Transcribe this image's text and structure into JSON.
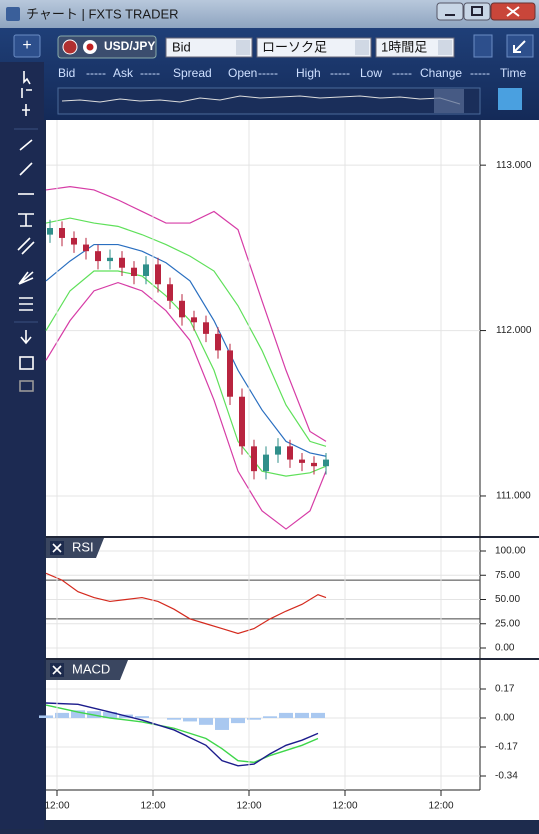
{
  "window": {
    "title": "チャート | FXTS TRADER"
  },
  "toolbar": {
    "symbol": "USD/JPY",
    "price_side": "Bid",
    "chart_type": "ローソク足",
    "timeframe": "1時間足"
  },
  "quote_bar": [
    "Bid",
    "-----",
    "Ask",
    "-----",
    "Spread",
    "Open",
    "-----",
    "High",
    "-----",
    "Low",
    "-----",
    "Change",
    "-----",
    "Time"
  ],
  "chart_data": [
    {
      "type": "candlestick",
      "x": [
        1,
        4,
        7,
        10,
        13,
        16,
        19,
        22,
        25,
        28,
        31,
        34,
        37,
        40,
        43,
        46,
        49,
        52,
        55,
        58,
        61,
        64,
        67,
        70
      ],
      "open": [
        112.58,
        112.62,
        112.56,
        112.52,
        112.48,
        112.42,
        112.44,
        112.38,
        112.33,
        112.4,
        112.28,
        112.18,
        112.08,
        112.05,
        111.98,
        111.88,
        111.6,
        111.3,
        111.15,
        111.25,
        111.3,
        111.22,
        111.2,
        111.18
      ],
      "high": [
        112.67,
        112.66,
        112.6,
        112.56,
        112.52,
        112.49,
        112.48,
        112.42,
        112.45,
        112.44,
        112.32,
        112.22,
        112.12,
        112.09,
        112.02,
        111.92,
        111.65,
        111.34,
        111.3,
        111.35,
        111.34,
        111.26,
        111.24,
        111.26
      ],
      "low": [
        112.53,
        112.51,
        112.47,
        112.43,
        112.37,
        112.37,
        112.33,
        112.28,
        112.28,
        112.23,
        112.13,
        112.03,
        112.0,
        111.93,
        111.83,
        111.55,
        111.25,
        111.1,
        111.1,
        111.2,
        111.17,
        111.15,
        111.13,
        111.13
      ],
      "close": [
        112.62,
        112.56,
        112.52,
        112.48,
        112.42,
        112.44,
        112.38,
        112.33,
        112.4,
        112.28,
        112.18,
        112.08,
        112.05,
        111.98,
        111.88,
        111.6,
        111.3,
        111.15,
        111.25,
        111.3,
        111.22,
        111.2,
        111.18,
        111.22
      ],
      "up_color": "#2f8f8a",
      "down_color": "#b8243f",
      "line_x": [
        0,
        6,
        12,
        18,
        24,
        30,
        36,
        42,
        48,
        54,
        60,
        66,
        70
      ],
      "lines": [
        {
          "color": "#d63ca6",
          "values": [
            112.85,
            112.87,
            112.85,
            112.79,
            112.72,
            112.65,
            112.65,
            112.72,
            112.61,
            112.18,
            111.76,
            111.39,
            111.33
          ]
        },
        {
          "color": "#5fe05a",
          "values": [
            112.65,
            112.68,
            112.65,
            112.63,
            112.58,
            112.52,
            112.45,
            112.36,
            112.15,
            111.88,
            111.55,
            111.33,
            111.3
          ]
        },
        {
          "color": "#2a6fc0",
          "values": [
            112.3,
            112.42,
            112.52,
            112.52,
            112.48,
            112.41,
            112.3,
            112.06,
            111.76,
            111.52,
            111.33,
            111.26,
            111.24
          ]
        },
        {
          "color": "#5fe05a",
          "values": [
            112.0,
            112.24,
            112.36,
            112.36,
            112.33,
            112.21,
            112.06,
            111.76,
            111.33,
            111.15,
            111.12,
            111.14,
            111.18
          ]
        },
        {
          "color": "#d63ca6",
          "values": [
            111.82,
            112.06,
            112.24,
            112.29,
            112.24,
            112.12,
            111.94,
            111.58,
            111.15,
            110.91,
            110.8,
            110.91,
            111.15
          ]
        }
      ],
      "xlim": [
        0,
        108.5
      ],
      "ylim": [
        110.758,
        113.273
      ],
      "yticks": [
        {
          "value": 113,
          "label": "113.000"
        },
        {
          "value": 112,
          "label": "112.000"
        },
        {
          "value": 111,
          "label": "111.000"
        }
      ]
    },
    {
      "type": "line",
      "title": "RSI",
      "x": [
        0,
        4,
        8,
        12,
        16,
        20,
        24,
        28,
        32,
        36,
        40,
        44,
        48,
        52,
        56,
        60,
        64,
        68,
        70
      ],
      "values": [
        77,
        70,
        58,
        52,
        48,
        50,
        52,
        48,
        40,
        30,
        25,
        20,
        15,
        20,
        30,
        38,
        45,
        55,
        52
      ],
      "color": "#d42a1e",
      "levels": [
        70,
        30
      ],
      "xlim": [
        0,
        108.5
      ],
      "ylim": [
        -10.3,
        113.4
      ],
      "yticks": [
        {
          "value": 100,
          "label": "100.00"
        },
        {
          "value": 75,
          "label": "75.00"
        },
        {
          "value": 50,
          "label": "50.00"
        },
        {
          "value": 25,
          "label": "25.00"
        },
        {
          "value": 0,
          "label": "0.00"
        }
      ]
    },
    {
      "type": "macd",
      "title": "MACD",
      "hist_x": [
        0,
        4,
        8,
        12,
        16,
        20,
        24,
        28,
        32,
        36,
        40,
        44,
        48,
        52,
        56,
        60,
        64,
        68
      ],
      "histogram": [
        0.015,
        0.03,
        0.045,
        0.04,
        0.035,
        0.02,
        0.011,
        0,
        -0.01,
        -0.02,
        -0.04,
        -0.07,
        -0.03,
        -0.01,
        0.01,
        0.03,
        0.03,
        0.03
      ],
      "hist_color": "#a9c8f0",
      "x": [
        0,
        8,
        16,
        24,
        32,
        40,
        44,
        48,
        52,
        56,
        60,
        64,
        68
      ],
      "macd": [
        0.088,
        0.08,
        0.035,
        -0.012,
        -0.07,
        -0.16,
        -0.25,
        -0.28,
        -0.27,
        -0.21,
        -0.16,
        -0.13,
        -0.09
      ],
      "signal": [
        0.076,
        0.035,
        0,
        -0.023,
        -0.06,
        -0.12,
        -0.18,
        -0.25,
        -0.26,
        -0.22,
        -0.19,
        -0.16,
        -0.12
      ],
      "macd_color": "#1c1c8c",
      "signal_color": "#3ed64a",
      "xlim": [
        0,
        108.5
      ],
      "ylim": [
        -0.422,
        0.34
      ],
      "yticks": [
        0.17,
        {
          "value": 0,
          "label": "0.00"
        },
        -0.17,
        -0.34
      ],
      "xticks": [
        {
          "value": 2.75,
          "label": "12:00"
        },
        {
          "value": 26.75,
          "label": "12:00"
        },
        {
          "value": 50.75,
          "label": "12:00"
        },
        {
          "value": 74.75,
          "label": "12:00"
        },
        {
          "value": 98.75,
          "label": "12:00"
        }
      ]
    }
  ]
}
